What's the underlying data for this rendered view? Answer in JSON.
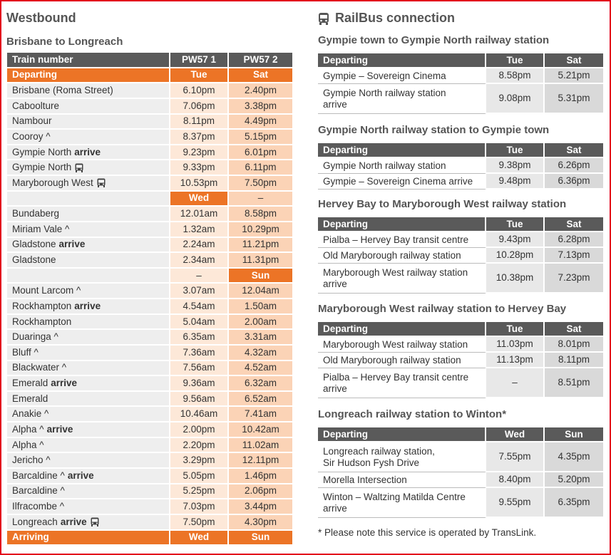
{
  "left": {
    "title": "Westbound",
    "subtitle": "Brisbane to Longreach",
    "header": [
      "Train number",
      "PW57 1",
      "PW57 2"
    ],
    "departing": [
      "Departing",
      "Tue",
      "Sat"
    ],
    "rows": [
      {
        "station": "Brisbane (Roma Street)",
        "times": [
          "6.10pm",
          "2.40pm"
        ]
      },
      {
        "station": "Caboolture",
        "times": [
          "7.06pm",
          "3.38pm"
        ]
      },
      {
        "station": "Nambour",
        "times": [
          "8.11pm",
          "4.49pm"
        ]
      },
      {
        "station": "Cooroy ^",
        "times": [
          "8.37pm",
          "5.15pm"
        ]
      },
      {
        "station": "Gympie North",
        "note": "arrive",
        "times": [
          "9.23pm",
          "6.01pm"
        ]
      },
      {
        "station": "Gympie North",
        "bus": true,
        "times": [
          "9.33pm",
          "6.11pm"
        ]
      },
      {
        "station": "Maryborough West",
        "bus": true,
        "times": [
          "10.53pm",
          "7.50pm"
        ]
      },
      {
        "times": [
          "Wed",
          "–"
        ],
        "highlight": 0
      },
      {
        "station": "Bundaberg",
        "times": [
          "12.01am",
          "8.58pm"
        ]
      },
      {
        "station": "Miriam Vale ^",
        "times": [
          "1.32am",
          "10.29pm"
        ]
      },
      {
        "station": "Gladstone",
        "note": "arrive",
        "times": [
          "2.24am",
          "11.21pm"
        ]
      },
      {
        "station": "Gladstone",
        "times": [
          "2.34am",
          "11.31pm"
        ]
      },
      {
        "times": [
          "–",
          "Sun"
        ],
        "highlight": 1
      },
      {
        "station": "Mount Larcom ^",
        "times": [
          "3.07am",
          "12.04am"
        ]
      },
      {
        "station": "Rockhampton",
        "note": "arrive",
        "times": [
          "4.54am",
          "1.50am"
        ]
      },
      {
        "station": "Rockhampton",
        "times": [
          "5.04am",
          "2.00am"
        ]
      },
      {
        "station": "Duaringa ^",
        "times": [
          "6.35am",
          "3.31am"
        ]
      },
      {
        "station": "Bluff ^",
        "times": [
          "7.36am",
          "4.32am"
        ]
      },
      {
        "station": "Blackwater ^",
        "times": [
          "7.56am",
          "4.52am"
        ]
      },
      {
        "station": "Emerald",
        "note": "arrive",
        "times": [
          "9.36am",
          "6.32am"
        ]
      },
      {
        "station": "Emerald",
        "times": [
          "9.56am",
          "6.52am"
        ]
      },
      {
        "station": "Anakie ^",
        "times": [
          "10.46am",
          "7.41am"
        ]
      },
      {
        "station": "Alpha ^",
        "note": "arrive",
        "times": [
          "2.00pm",
          "10.42am"
        ]
      },
      {
        "station": "Alpha ^",
        "times": [
          "2.20pm",
          "11.02am"
        ]
      },
      {
        "station": "Jericho ^",
        "times": [
          "3.29pm",
          "12.11pm"
        ]
      },
      {
        "station": "Barcaldine ^",
        "note": "arrive",
        "times": [
          "5.05pm",
          "1.46pm"
        ]
      },
      {
        "station": "Barcaldine ^",
        "times": [
          "5.25pm",
          "2.06pm"
        ]
      },
      {
        "station": "Ilfracombe ^",
        "times": [
          "7.03pm",
          "3.44pm"
        ]
      },
      {
        "station": "Longreach",
        "note": "arrive",
        "bus": true,
        "times": [
          "7.50pm",
          "4.30pm"
        ]
      }
    ],
    "arriving": [
      "Arriving",
      "Wed",
      "Sun"
    ]
  },
  "right": {
    "title": "RailBus connection",
    "sections": [
      {
        "title": "Gympie town to Gympie North railway station",
        "header": [
          "Departing",
          "Tue",
          "Sat"
        ],
        "rows": [
          {
            "lines": [
              "Gympie – Sovereign Cinema"
            ],
            "times": [
              "8.58pm",
              "5.21pm"
            ]
          },
          {
            "lines": [
              "Gympie North railway station",
              "arrive"
            ],
            "times": [
              "9.08pm",
              "5.31pm"
            ]
          }
        ]
      },
      {
        "title": "Gympie North railway station to Gympie town",
        "header": [
          "Departing",
          "Tue",
          "Sat"
        ],
        "rows": [
          {
            "lines": [
              "Gympie North railway station"
            ],
            "times": [
              "9.38pm",
              "6.26pm"
            ]
          },
          {
            "lines": [
              "Gympie – Sovereign Cinema arrive"
            ],
            "times": [
              "9.48pm",
              "6.36pm"
            ]
          }
        ]
      },
      {
        "title": "Hervey Bay to Maryborough West railway station",
        "header": [
          "Departing",
          "Tue",
          "Sat"
        ],
        "rows": [
          {
            "lines": [
              "Pialba – Hervey Bay transit centre"
            ],
            "times": [
              "9.43pm",
              "6.28pm"
            ]
          },
          {
            "lines": [
              "Old Maryborough railway station"
            ],
            "times": [
              "10.28pm",
              "7.13pm"
            ]
          },
          {
            "lines": [
              "Maryborough West railway station",
              "arrive"
            ],
            "times": [
              "10.38pm",
              "7.23pm"
            ]
          }
        ]
      },
      {
        "title": "Maryborough West railway station to Hervey Bay",
        "header": [
          "Departing",
          "Tue",
          "Sat"
        ],
        "rows": [
          {
            "lines": [
              "Maryborough West railway station"
            ],
            "times": [
              "11.03pm",
              "8.01pm"
            ]
          },
          {
            "lines": [
              "Old Maryborough railway station"
            ],
            "times": [
              "11.13pm",
              "8.11pm"
            ]
          },
          {
            "lines": [
              "Pialba – Hervey Bay transit centre",
              "arrive"
            ],
            "times": [
              "–",
              "8.51pm"
            ]
          }
        ]
      },
      {
        "title": "Longreach railway station to Winton*",
        "header": [
          "Departing",
          "Wed",
          "Sun"
        ],
        "rows": [
          {
            "lines": [
              "Longreach railway station,",
              "Sir Hudson Fysh Drive"
            ],
            "times": [
              "7.55pm",
              "4.35pm"
            ]
          },
          {
            "lines": [
              "Morella Intersection"
            ],
            "times": [
              "8.40pm",
              "5.20pm"
            ]
          },
          {
            "lines": [
              "Winton – Waltzing Matilda Centre",
              "arrive"
            ],
            "times": [
              "9.55pm",
              "6.35pm"
            ]
          }
        ]
      }
    ],
    "footnote": "* Please note this service is operated by TransLink."
  }
}
